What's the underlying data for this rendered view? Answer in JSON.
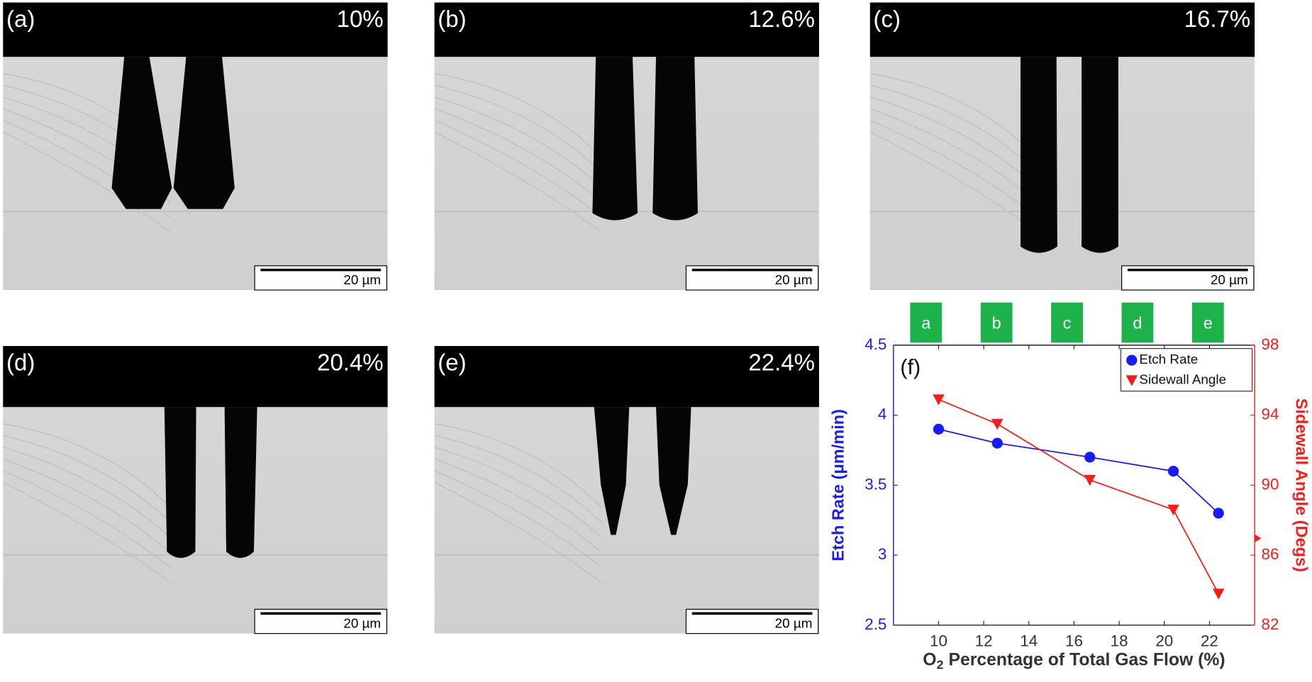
{
  "panels": [
    {
      "label": "(a)",
      "percent": "10%",
      "scale": "20 µm"
    },
    {
      "label": "(b)",
      "percent": "12.6%",
      "scale": "20 µm"
    },
    {
      "label": "(c)",
      "percent": "16.7%",
      "scale": "20 µm"
    },
    {
      "label": "(d)",
      "percent": "20.4%",
      "scale": "20 µm"
    },
    {
      "label": "(e)",
      "percent": "22.4%",
      "scale": "20 µm"
    }
  ],
  "chart_data": {
    "type": "line",
    "panel_label": "(f)",
    "markers": [
      "a",
      "b",
      "c",
      "d",
      "e"
    ],
    "x": [
      10,
      12.6,
      16.7,
      20.4,
      22.4
    ],
    "x_label": {
      "base": "O",
      "sub": "2",
      "rest": "Percentage of Total Gas Flow (%)"
    },
    "y_label": "Etch Rate (μm/min)",
    "y2_label": "Sidewall Angle (Degs)",
    "xlim": [
      8,
      24
    ],
    "xticks": [
      10,
      12,
      14,
      16,
      18,
      20,
      22
    ],
    "ylim": [
      2.5,
      4.5
    ],
    "yticks": [
      2.5,
      3,
      3.5,
      4,
      4.5
    ],
    "y2lim": [
      82,
      98
    ],
    "y2ticks": [
      82,
      86,
      90,
      94,
      98
    ],
    "legend": "upper right",
    "series": [
      {
        "name": "Etch Rate",
        "color": "#1a1aff",
        "marker": "circle",
        "values": [
          3.9,
          3.8,
          3.7,
          3.6,
          3.3
        ]
      },
      {
        "name": "Sidewall Angle",
        "color": "#ff1a1a",
        "marker": "triangle-down",
        "axis": "y2",
        "values": [
          94.9,
          93.5,
          90.3,
          88.6,
          83.8
        ]
      }
    ]
  }
}
